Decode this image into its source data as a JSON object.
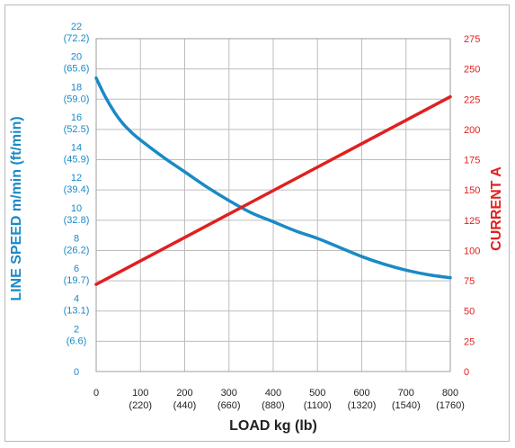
{
  "chart_data": {
    "type": "line",
    "xlabel": "LOAD kg (lb)",
    "ylabel_left": "LINE SPEED m/min (ft/min)",
    "ylabel_right": "CURRENT A",
    "x_ticks": [
      {
        "value": 0,
        "label": "0",
        "sub": ""
      },
      {
        "value": 100,
        "label": "100",
        "sub": "(220)"
      },
      {
        "value": 200,
        "label": "200",
        "sub": "(440)"
      },
      {
        "value": 300,
        "label": "300",
        "sub": "(660)"
      },
      {
        "value": 400,
        "label": "400",
        "sub": "(880)"
      },
      {
        "value": 500,
        "label": "500",
        "sub": "(1100)"
      },
      {
        "value": 600,
        "label": "600",
        "sub": "(1320)"
      },
      {
        "value": 700,
        "label": "700",
        "sub": "(1540)"
      },
      {
        "value": 800,
        "label": "800",
        "sub": "(1760)"
      }
    ],
    "y_left_ticks": [
      {
        "value": 0,
        "label": "0",
        "sub": ""
      },
      {
        "value": 2,
        "label": "2",
        "sub": "(6.6)"
      },
      {
        "value": 4,
        "label": "4",
        "sub": "(13.1)"
      },
      {
        "value": 6,
        "label": "6",
        "sub": "(19.7)"
      },
      {
        "value": 8,
        "label": "8",
        "sub": "(26.2)"
      },
      {
        "value": 10,
        "label": "10",
        "sub": "(32.8)"
      },
      {
        "value": 12,
        "label": "12",
        "sub": "(39.4)"
      },
      {
        "value": 14,
        "label": "14",
        "sub": "(45.9)"
      },
      {
        "value": 16,
        "label": "16",
        "sub": "(52.5)"
      },
      {
        "value": 18,
        "label": "18",
        "sub": "(59.0)"
      },
      {
        "value": 20,
        "label": "20",
        "sub": "(65.6)"
      },
      {
        "value": 22,
        "label": "22",
        "sub": "(72.2)"
      }
    ],
    "y_right_ticks": [
      0,
      25,
      50,
      75,
      100,
      125,
      150,
      175,
      200,
      225,
      250,
      275
    ],
    "xlim": [
      0,
      800
    ],
    "ylim_left": [
      0,
      22
    ],
    "ylim_right": [
      0,
      275
    ],
    "grid": true,
    "colors": {
      "speed": "#1a8ac6",
      "current": "#e02020",
      "axis_left": "#1a8ac6",
      "axis_right": "#e02020",
      "grid": "#bdbdbd",
      "x_text": "#222222"
    },
    "series": [
      {
        "axis": "left",
        "x": [
          0,
          20,
          40,
          60,
          80,
          100,
          150,
          200,
          250,
          300,
          350,
          400,
          450,
          500,
          550,
          600,
          650,
          700,
          750,
          800
        ],
        "values": [
          19.4,
          18.2,
          17.2,
          16.4,
          15.8,
          15.3,
          14.2,
          13.2,
          12.2,
          11.3,
          10.5,
          9.9,
          9.3,
          8.8,
          8.2,
          7.6,
          7.1,
          6.7,
          6.4,
          6.2
        ]
      },
      {
        "axis": "right",
        "x": [
          0,
          800
        ],
        "values": [
          72,
          227
        ]
      }
    ]
  }
}
